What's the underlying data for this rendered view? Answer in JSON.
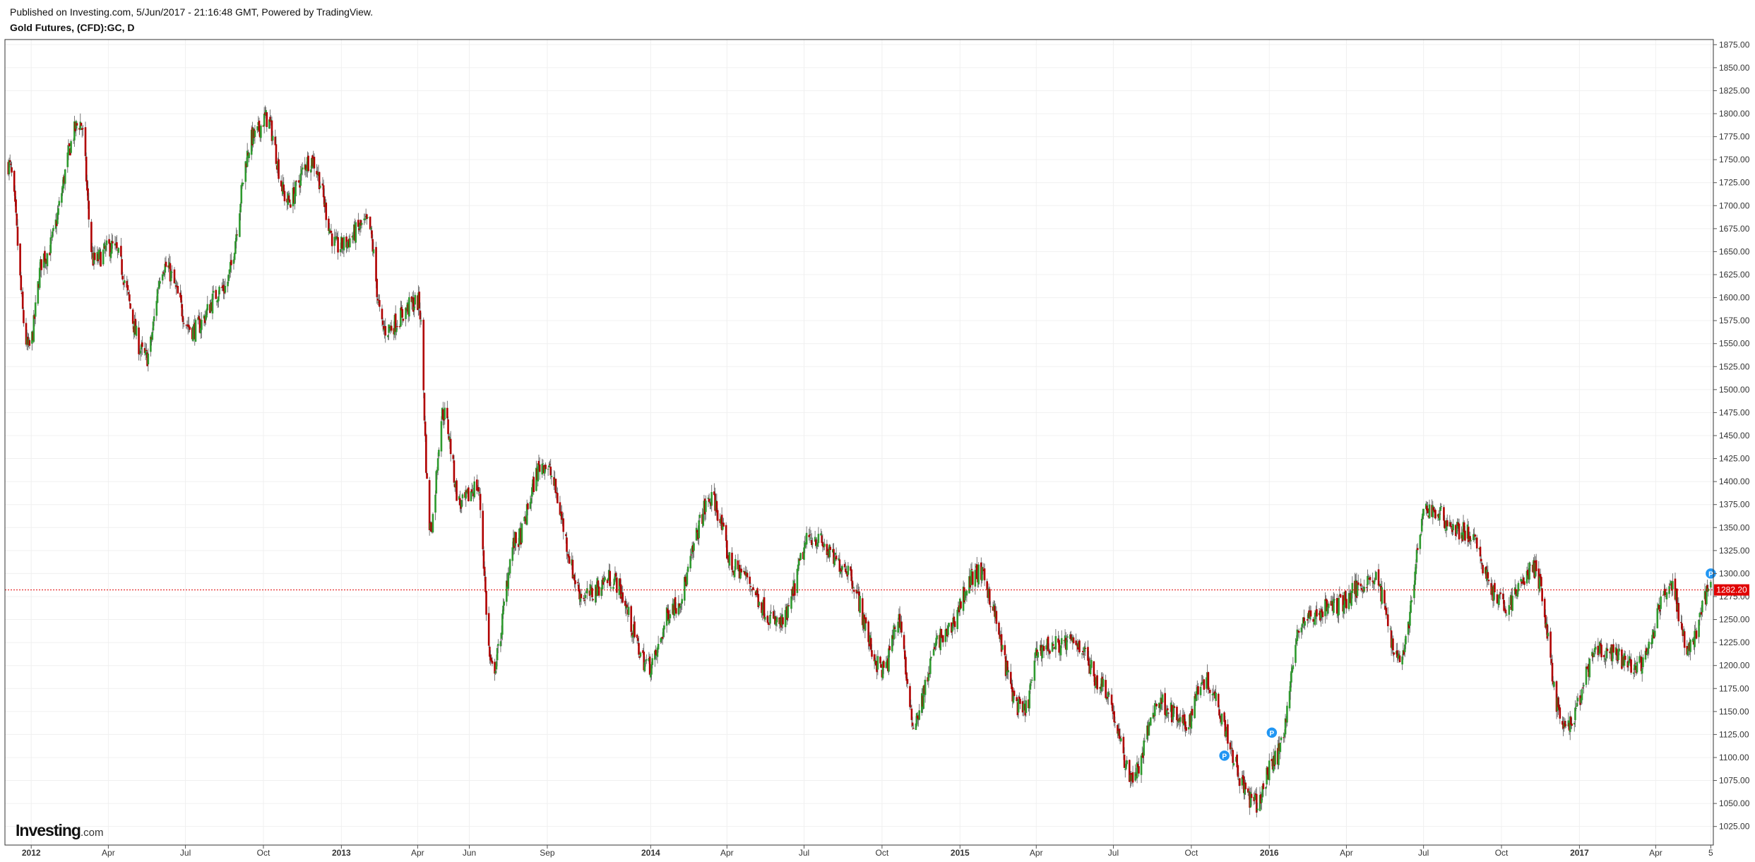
{
  "header": {
    "published": "Published on Investing.com, 5/Jun/2017 - 21:16:48 GMT, Powered by TradingView.",
    "title": "Gold Futures, (CFD):GC, D"
  },
  "logo": {
    "main": "Investing",
    "sub": ".com"
  },
  "colors": {
    "up": "#2e9a2e",
    "down": "#b00000",
    "wick": "#555555",
    "last_price_line": "#e00000",
    "marker": "#2196f3",
    "grid": "#f0f0f0"
  },
  "chart_data": {
    "type": "candlestick",
    "title": "Gold Futures, (CFD):GC, D",
    "interval": "D",
    "x_range": [
      "2011-12-01",
      "2017-06-08"
    ],
    "x_tick_labels": [
      {
        "date": "2012-01-01",
        "label": "2012",
        "bold": true
      },
      {
        "date": "2012-04-01",
        "label": "Apr"
      },
      {
        "date": "2012-07-01",
        "label": "Jul"
      },
      {
        "date": "2012-10-01",
        "label": "Oct"
      },
      {
        "date": "2013-01-01",
        "label": "2013",
        "bold": true
      },
      {
        "date": "2013-04-01",
        "label": "Apr"
      },
      {
        "date": "2013-06-01",
        "label": "Jun"
      },
      {
        "date": "2013-09-01",
        "label": "Sep"
      },
      {
        "date": "2014-01-01",
        "label": "2014",
        "bold": true
      },
      {
        "date": "2014-04-01",
        "label": "Apr"
      },
      {
        "date": "2014-07-01",
        "label": "Jul"
      },
      {
        "date": "2014-10-01",
        "label": "Oct"
      },
      {
        "date": "2015-01-01",
        "label": "2015",
        "bold": true
      },
      {
        "date": "2015-04-01",
        "label": "Apr"
      },
      {
        "date": "2015-07-01",
        "label": "Jul"
      },
      {
        "date": "2015-10-01",
        "label": "Oct"
      },
      {
        "date": "2016-01-01",
        "label": "2016",
        "bold": true
      },
      {
        "date": "2016-04-01",
        "label": "Apr"
      },
      {
        "date": "2016-07-01",
        "label": "Jul"
      },
      {
        "date": "2016-10-01",
        "label": "Oct"
      },
      {
        "date": "2017-01-01",
        "label": "2017",
        "bold": true
      },
      {
        "date": "2017-04-01",
        "label": "Apr"
      },
      {
        "date": "2017-06-05",
        "label": "5"
      }
    ],
    "y_range": [
      1004.8,
      1880.6
    ],
    "y_ticks": [
      "1025.00",
      "1050.00",
      "1075.00",
      "1100.00",
      "1125.00",
      "1150.00",
      "1175.00",
      "1200.00",
      "1225.00",
      "1250.00",
      "1275.00",
      "1300.00",
      "1325.00",
      "1350.00",
      "1375.00",
      "1400.00",
      "1425.00",
      "1450.00",
      "1475.00",
      "1500.00",
      "1525.00",
      "1550.00",
      "1575.00",
      "1600.00",
      "1625.00",
      "1650.00",
      "1675.00",
      "1700.00",
      "1725.00",
      "1750.00",
      "1775.00",
      "1800.00",
      "1825.00",
      "1850.00",
      "1875.00"
    ],
    "last_price": 1282.2,
    "last_price_label": "1282.20",
    "grid": true,
    "price_path": [
      [
        "2011-12-05",
        1745
      ],
      [
        "2011-12-29",
        1545
      ],
      [
        "2012-01-16",
        1645
      ],
      [
        "2012-02-28",
        1790
      ],
      [
        "2012-03-15",
        1640
      ],
      [
        "2012-04-05",
        1655
      ],
      [
        "2012-05-16",
        1535
      ],
      [
        "2012-06-05",
        1635
      ],
      [
        "2012-07-10",
        1565
      ],
      [
        "2012-08-15",
        1610
      ],
      [
        "2012-09-20",
        1775
      ],
      [
        "2012-10-04",
        1795
      ],
      [
        "2012-10-30",
        1705
      ],
      [
        "2012-11-26",
        1750
      ],
      [
        "2012-12-28",
        1655
      ],
      [
        "2013-02-01",
        1680
      ],
      [
        "2013-02-20",
        1565
      ],
      [
        "2013-04-02",
        1595
      ],
      [
        "2013-04-16",
        1350
      ],
      [
        "2013-05-01",
        1475
      ],
      [
        "2013-05-22",
        1375
      ],
      [
        "2013-06-10",
        1395
      ],
      [
        "2013-06-28",
        1195
      ],
      [
        "2013-07-26",
        1335
      ],
      [
        "2013-08-27",
        1420
      ],
      [
        "2013-10-15",
        1275
      ],
      [
        "2013-11-15",
        1295
      ],
      [
        "2013-12-31",
        1200
      ],
      [
        "2014-01-28",
        1265
      ],
      [
        "2014-03-14",
        1380
      ],
      [
        "2014-04-10",
        1305
      ],
      [
        "2014-06-03",
        1245
      ],
      [
        "2014-07-10",
        1340
      ],
      [
        "2014-08-15",
        1310
      ],
      [
        "2014-10-03",
        1195
      ],
      [
        "2014-10-21",
        1250
      ],
      [
        "2014-11-06",
        1140
      ],
      [
        "2014-12-10",
        1230
      ],
      [
        "2015-01-22",
        1300
      ],
      [
        "2015-03-17",
        1150
      ],
      [
        "2015-04-06",
        1220
      ],
      [
        "2015-05-18",
        1225
      ],
      [
        "2015-06-17",
        1180
      ],
      [
        "2015-07-24",
        1080
      ],
      [
        "2015-08-24",
        1160
      ],
      [
        "2015-09-25",
        1135
      ],
      [
        "2015-10-14",
        1185
      ],
      [
        "2015-12-17",
        1050
      ],
      [
        "2016-01-08",
        1100
      ],
      [
        "2016-02-11",
        1250
      ],
      [
        "2016-03-16",
        1265
      ],
      [
        "2016-05-03",
        1295
      ],
      [
        "2016-06-03",
        1210
      ],
      [
        "2016-07-06",
        1370
      ],
      [
        "2016-08-18",
        1345
      ],
      [
        "2016-10-05",
        1265
      ],
      [
        "2016-11-08",
        1305
      ],
      [
        "2016-12-15",
        1130
      ],
      [
        "2017-01-24",
        1215
      ],
      [
        "2017-03-14",
        1200
      ],
      [
        "2017-04-18",
        1290
      ],
      [
        "2017-05-09",
        1220
      ],
      [
        "2017-06-05",
        1282
      ]
    ],
    "markers": [
      {
        "date": "2015-11-09",
        "price": 1102,
        "label": "P"
      },
      {
        "date": "2016-01-04",
        "price": 1127,
        "label": "P"
      },
      {
        "date": "2017-06-05",
        "price": 1300,
        "label": "P"
      }
    ]
  }
}
